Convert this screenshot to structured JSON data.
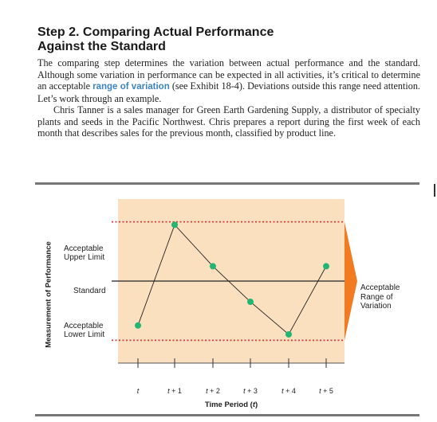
{
  "section": {
    "heading_line1": "Step 2. Comparing Actual Performance",
    "heading_line2": "Against the Standard",
    "para1_a": "The comparing step determines the variation between actual performance and the standard. Although some variation in performance can be expected in all activities, it’s critical to determine an acceptable ",
    "para1_term": "range of variation",
    "para1_b": " (see Exhibit 18-4). Deviations outside this range need attention. Let’s work through an example.",
    "para2": "Chris Tanner is a sales manager for Green Earth Gardening Supply, a distributor of specialty plants and seeds in the Pacific Northwest. Chris prepares a report during the first week of each month that describes sales for the previous month, classified by product line."
  },
  "colors": {
    "heading": "#1a1a1a",
    "keyword": "#3d84c6",
    "plot_background": "#fbe0c0",
    "limit_line": "#d63a3a",
    "point_fill": "#22b573",
    "range_arrow": "#f27a20"
  },
  "chart_data": {
    "type": "line",
    "ylabel": "Measurement of Performance",
    "xlabel_main": "Time Period (",
    "xlabel_var": "t",
    "xlabel_end": ")",
    "upper_limit_label_1": "Acceptable",
    "upper_limit_label_2": "Upper Limit",
    "standard_label": "Standard",
    "lower_limit_label_1": "Acceptable",
    "lower_limit_label_2": "Lower Limit",
    "range_label_1": "Acceptable",
    "range_label_2": "Range of",
    "range_label_3": "Variation",
    "ticks": [
      {
        "var": "t",
        "suffix": ""
      },
      {
        "var": "t",
        "suffix": " + 1"
      },
      {
        "var": "t",
        "suffix": " + 2"
      },
      {
        "var": "t",
        "suffix": " + 3"
      },
      {
        "var": "t",
        "suffix": " + 4"
      },
      {
        "var": "t",
        "suffix": " + 5"
      }
    ],
    "ylim": [
      -1.25,
      1.25
    ],
    "standard": 0,
    "upper_limit": 1,
    "lower_limit": -1,
    "values": [
      -0.75,
      0.95,
      0.25,
      -0.35,
      -0.9,
      0.25
    ],
    "grid": false
  }
}
